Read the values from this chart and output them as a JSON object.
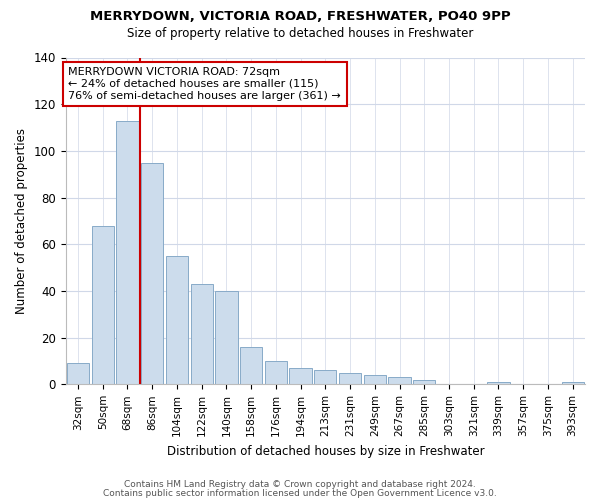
{
  "title": "MERRYDOWN, VICTORIA ROAD, FRESHWATER, PO40 9PP",
  "subtitle": "Size of property relative to detached houses in Freshwater",
  "xlabel": "Distribution of detached houses by size in Freshwater",
  "ylabel": "Number of detached properties",
  "bar_labels": [
    "32sqm",
    "50sqm",
    "68sqm",
    "86sqm",
    "104sqm",
    "122sqm",
    "140sqm",
    "158sqm",
    "176sqm",
    "194sqm",
    "213sqm",
    "231sqm",
    "249sqm",
    "267sqm",
    "285sqm",
    "303sqm",
    "321sqm",
    "339sqm",
    "357sqm",
    "375sqm",
    "393sqm"
  ],
  "bar_values": [
    9,
    68,
    113,
    95,
    55,
    43,
    40,
    16,
    10,
    7,
    6,
    5,
    4,
    3,
    2,
    0,
    0,
    1,
    0,
    0,
    1
  ],
  "bar_color": "#ccdcec",
  "bar_edgecolor": "#88aac8",
  "vline_index": 3,
  "property_line_label": "MERRYDOWN VICTORIA ROAD: 72sqm",
  "annotation_line1": "← 24% of detached houses are smaller (115)",
  "annotation_line2": "76% of semi-detached houses are larger (361) →",
  "annotation_box_edgecolor": "#cc0000",
  "vline_color": "#cc0000",
  "ylim": [
    0,
    140
  ],
  "yticks": [
    0,
    20,
    40,
    60,
    80,
    100,
    120,
    140
  ],
  "footer_line1": "Contains HM Land Registry data © Crown copyright and database right 2024.",
  "footer_line2": "Contains public sector information licensed under the Open Government Licence v3.0.",
  "bg_color": "#ffffff",
  "plot_bg_color": "#ffffff",
  "grid_color": "#d0d8e8"
}
